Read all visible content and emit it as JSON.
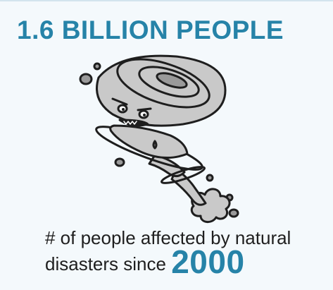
{
  "headline": "1.6 BILLION PEOPLE",
  "illustration": {
    "icon": "tornado-icon"
  },
  "caption": {
    "line1": "# of people affected by natural",
    "line2_text": "disasters since",
    "year": "2000"
  },
  "colors": {
    "accent": "#2683a8",
    "background": "#f4f9fc",
    "text": "#1f1f1f",
    "tornado_fill": "#c9c9c9",
    "outline": "#1e1e1e"
  }
}
